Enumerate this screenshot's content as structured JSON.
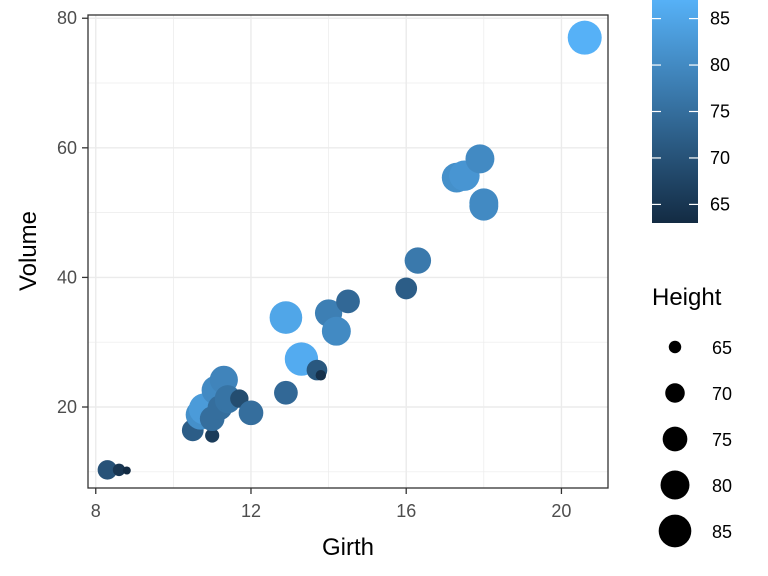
{
  "chart_data": {
    "type": "scatter",
    "title": "",
    "xlabel": "Girth",
    "ylabel": "Volume",
    "xlim": [
      7.8,
      21.2
    ],
    "ylim": [
      7.5,
      80.5
    ],
    "x_ticks": [
      8,
      12,
      16,
      20
    ],
    "y_ticks": [
      20,
      40,
      60,
      80
    ],
    "x_tick_labels": [
      "8",
      "12",
      "16",
      "20"
    ],
    "y_tick_labels": [
      "20",
      "40",
      "60",
      "80"
    ],
    "grid": true,
    "color_legend": {
      "title": "",
      "position": "top-right",
      "range": [
        63,
        87
      ],
      "ticks": [
        65,
        70,
        75,
        80,
        85
      ],
      "tick_labels": [
        "65",
        "70",
        "75",
        "80",
        "85"
      ],
      "color_low": "#132B43",
      "color_high": "#56B1F7"
    },
    "size_legend": {
      "title": "Height",
      "position": "right",
      "values": [
        65,
        70,
        75,
        80,
        85
      ],
      "labels": [
        "65",
        "70",
        "75",
        "80",
        "85"
      ]
    },
    "points": [
      {
        "x": 8.3,
        "y": 10.3,
        "height": 70
      },
      {
        "x": 8.6,
        "y": 10.3,
        "height": 65
      },
      {
        "x": 8.8,
        "y": 10.2,
        "height": 63
      },
      {
        "x": 10.5,
        "y": 16.4,
        "height": 72
      },
      {
        "x": 10.7,
        "y": 18.8,
        "height": 81
      },
      {
        "x": 10.8,
        "y": 19.7,
        "height": 83
      },
      {
        "x": 11.0,
        "y": 15.6,
        "height": 66
      },
      {
        "x": 11.0,
        "y": 18.2,
        "height": 75
      },
      {
        "x": 11.1,
        "y": 22.6,
        "height": 80
      },
      {
        "x": 11.2,
        "y": 19.9,
        "height": 75
      },
      {
        "x": 11.3,
        "y": 24.2,
        "height": 79
      },
      {
        "x": 11.4,
        "y": 21.0,
        "height": 76
      },
      {
        "x": 11.4,
        "y": 21.4,
        "height": 76
      },
      {
        "x": 11.7,
        "y": 21.3,
        "height": 69
      },
      {
        "x": 12.0,
        "y": 19.1,
        "height": 75
      },
      {
        "x": 12.9,
        "y": 22.2,
        "height": 74
      },
      {
        "x": 12.9,
        "y": 33.8,
        "height": 85
      },
      {
        "x": 13.3,
        "y": 27.4,
        "height": 86
      },
      {
        "x": 13.7,
        "y": 25.7,
        "height": 71
      },
      {
        "x": 13.8,
        "y": 24.9,
        "height": 64
      },
      {
        "x": 14.0,
        "y": 34.5,
        "height": 78
      },
      {
        "x": 14.2,
        "y": 31.7,
        "height": 80
      },
      {
        "x": 14.5,
        "y": 36.3,
        "height": 74
      },
      {
        "x": 16.0,
        "y": 38.3,
        "height": 72
      },
      {
        "x": 16.3,
        "y": 42.6,
        "height": 77
      },
      {
        "x": 17.3,
        "y": 55.4,
        "height": 81
      },
      {
        "x": 17.5,
        "y": 55.7,
        "height": 82
      },
      {
        "x": 17.9,
        "y": 58.3,
        "height": 80
      },
      {
        "x": 18.0,
        "y": 51.5,
        "height": 80
      },
      {
        "x": 18.0,
        "y": 51.0,
        "height": 80
      },
      {
        "x": 20.6,
        "y": 77.0,
        "height": 87
      }
    ]
  }
}
